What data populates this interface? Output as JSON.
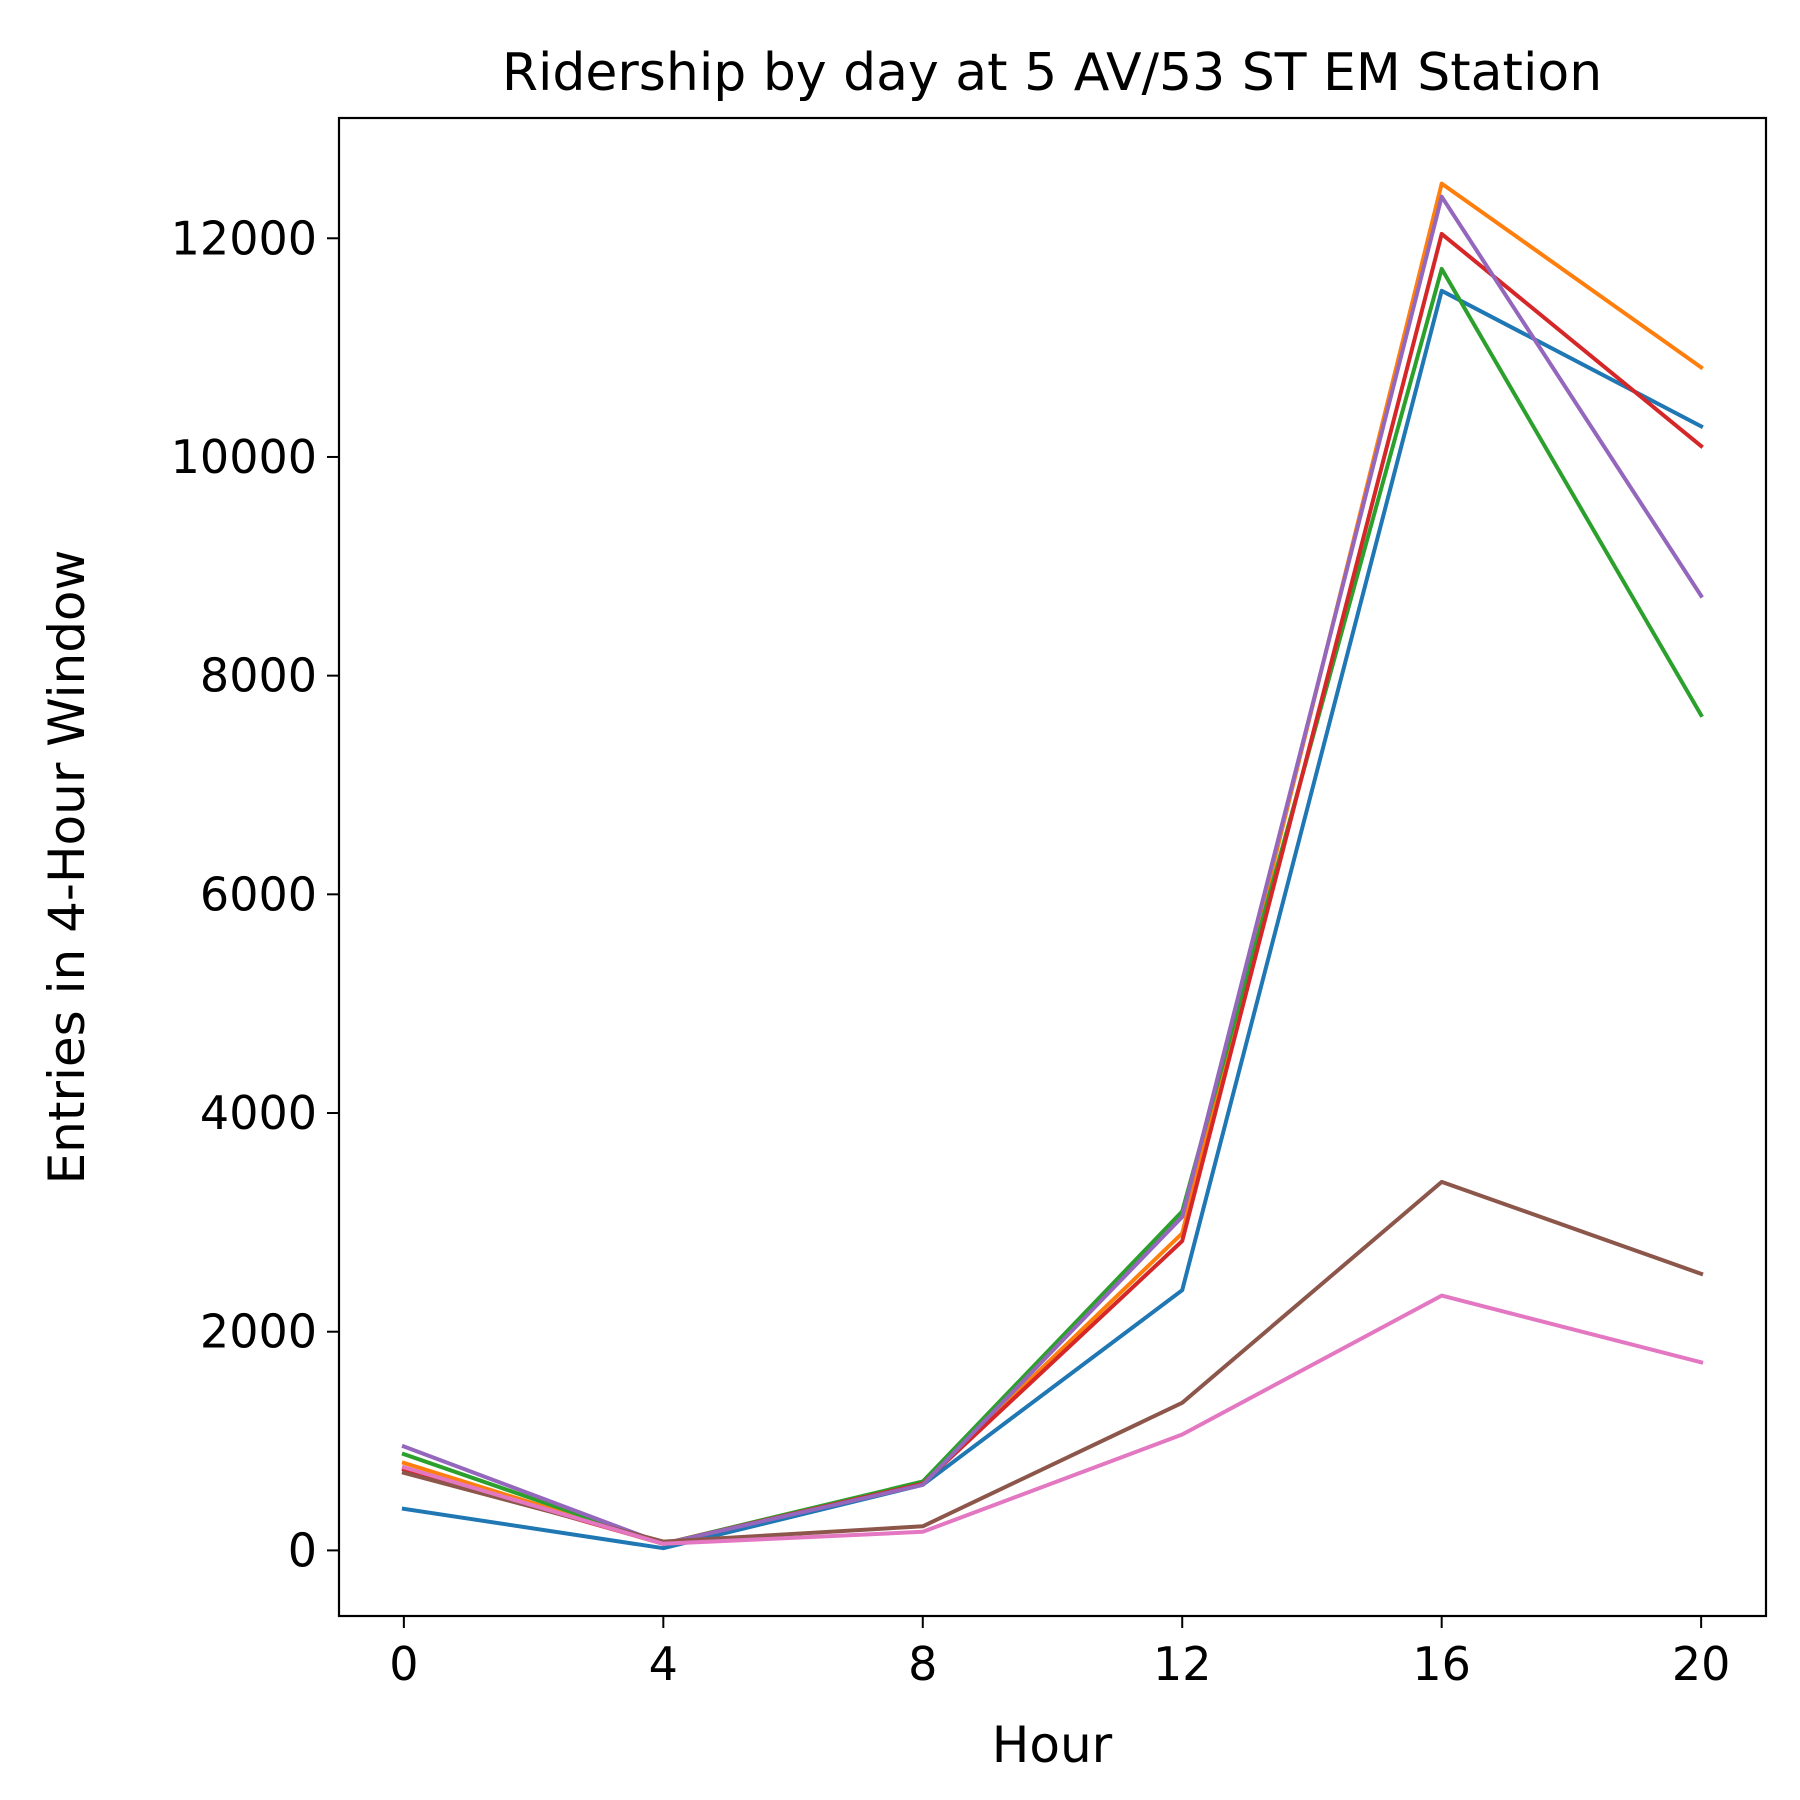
{
  "chart_data": {
    "type": "line",
    "title": "Ridership by day at 5 AV/53 ST EM Station",
    "xlabel": "Hour",
    "ylabel": "Entries in 4-Hour Window",
    "x": [
      0,
      4,
      8,
      12,
      16,
      20
    ],
    "xlim": [
      -1.0,
      21.0
    ],
    "ylim": [
      -600,
      13100
    ],
    "xticks": [
      0,
      4,
      8,
      12,
      16,
      20
    ],
    "yticks": [
      0,
      2000,
      4000,
      6000,
      8000,
      10000,
      12000
    ],
    "grid": false,
    "legend": false,
    "series": [
      {
        "color": "#1f77b4",
        "values": [
          380,
          20,
          600,
          2380,
          11520,
          10280
        ]
      },
      {
        "color": "#ff7f0e",
        "values": [
          800,
          60,
          620,
          2900,
          12500,
          10820
        ]
      },
      {
        "color": "#2ca02c",
        "values": [
          880,
          60,
          630,
          3100,
          11720,
          7640
        ]
      },
      {
        "color": "#d62728",
        "values": [
          740,
          60,
          610,
          2830,
          12040,
          10100
        ]
      },
      {
        "color": "#9467bd",
        "values": [
          950,
          60,
          600,
          3050,
          12380,
          8730
        ]
      },
      {
        "color": "#8c564b",
        "values": [
          710,
          80,
          220,
          1350,
          3370,
          2530
        ]
      },
      {
        "color": "#e377c2",
        "values": [
          760,
          60,
          170,
          1060,
          2330,
          1720
        ]
      }
    ]
  }
}
